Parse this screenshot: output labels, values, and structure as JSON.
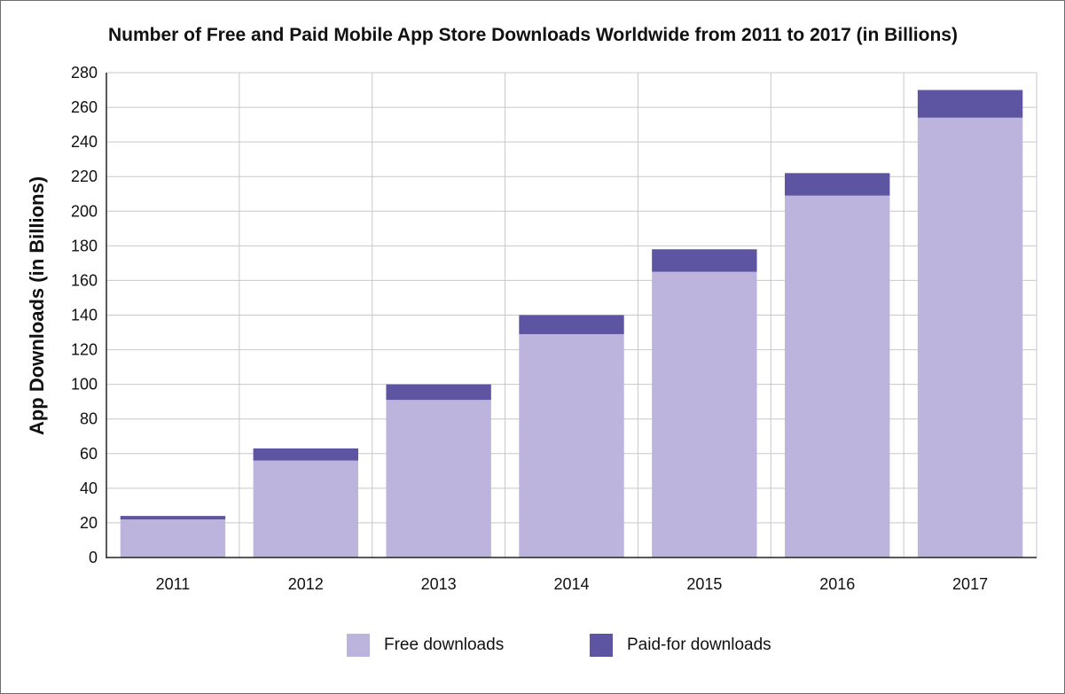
{
  "chart_data": {
    "type": "bar",
    "stacked": true,
    "title": "Number of Free and Paid Mobile App Store Downloads Worldwide from 2011 to 2017 (in Billions)",
    "xlabel": "",
    "ylabel": "App Downloads (in Billions)",
    "ylim": [
      0,
      280
    ],
    "yticks": [
      "0",
      "20",
      "40",
      "60",
      "80",
      "100",
      "120",
      "140",
      "160",
      "180",
      "200",
      "220",
      "240",
      "260",
      "280"
    ],
    "categories": [
      "2011",
      "2012",
      "2013",
      "2014",
      "2015",
      "2016",
      "2017"
    ],
    "series": [
      {
        "name": "Free downloads",
        "color": "#bcb4dc",
        "values": [
          22,
          56,
          91,
          129,
          165,
          209,
          254
        ]
      },
      {
        "name": "Paid-for downloads",
        "color": "#5e55a2",
        "values": [
          2,
          7,
          9,
          11,
          13,
          13,
          16
        ]
      }
    ],
    "grid": true,
    "legend_position": "bottom"
  }
}
